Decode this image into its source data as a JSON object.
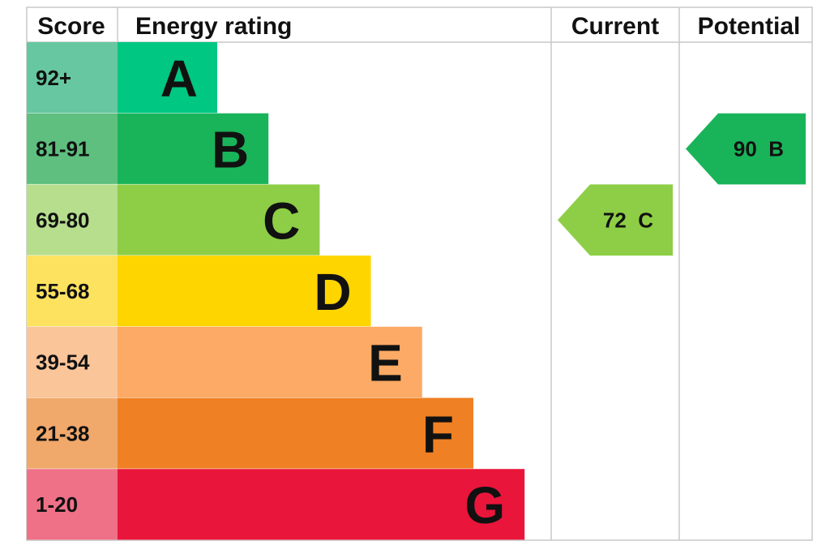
{
  "header": {
    "score": "Score",
    "energy_rating": "Energy rating",
    "current": "Current",
    "potential": "Potential"
  },
  "chart_data": {
    "type": "bar",
    "bands": [
      {
        "score": "92+",
        "letter": "A",
        "bar_color": "#00c781",
        "score_color": "#66c7a0"
      },
      {
        "score": "81-91",
        "letter": "B",
        "bar_color": "#19b459",
        "score_color": "#5ebf7f"
      },
      {
        "score": "69-80",
        "letter": "C",
        "bar_color": "#8dce46",
        "score_color": "#b6de8d"
      },
      {
        "score": "55-68",
        "letter": "D",
        "bar_color": "#ffd500",
        "score_color": "#fde25f"
      },
      {
        "score": "39-54",
        "letter": "E",
        "bar_color": "#fcaa65",
        "score_color": "#fbc59a"
      },
      {
        "score": "21-38",
        "letter": "F",
        "bar_color": "#ef8023",
        "score_color": "#f1a86b"
      },
      {
        "score": "1-20",
        "letter": "G",
        "bar_color": "#e9153b",
        "score_color": "#ef7187"
      }
    ],
    "current": {
      "value": 72,
      "band": "C",
      "label": "72  C",
      "color": "#8dce46"
    },
    "potential": {
      "value": 90,
      "band": "B",
      "label": "90  B",
      "color": "#19b459"
    }
  }
}
